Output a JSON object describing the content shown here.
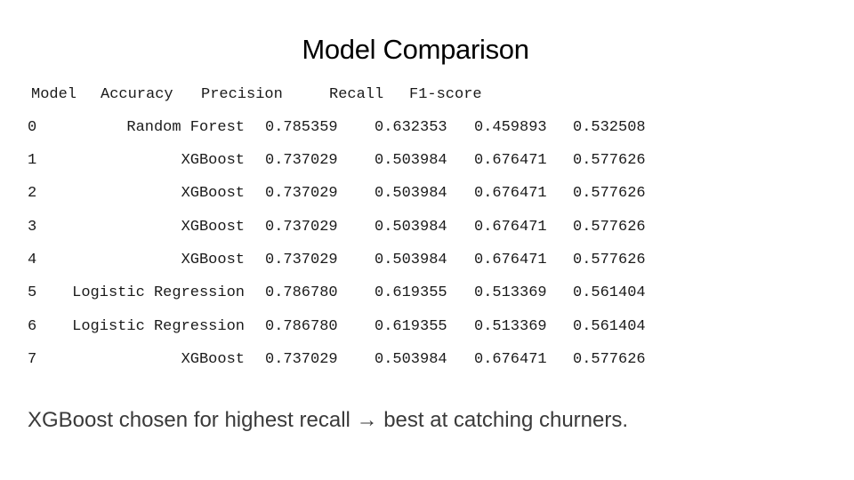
{
  "title": "Model Comparison",
  "table": {
    "headers": [
      "Model",
      "Accuracy",
      "Precision",
      "Recall",
      "F1-score"
    ],
    "rows": [
      [
        "0",
        "Random Forest",
        "0.785359",
        "0.632353",
        "0.459893",
        "0.532508"
      ],
      [
        "1",
        "XGBoost",
        "0.737029",
        "0.503984",
        "0.676471",
        "0.577626"
      ],
      [
        "2",
        "XGBoost",
        "0.737029",
        "0.503984",
        "0.676471",
        "0.577626"
      ],
      [
        "3",
        "XGBoost",
        "0.737029",
        "0.503984",
        "0.676471",
        "0.577626"
      ],
      [
        "4",
        "XGBoost",
        "0.737029",
        "0.503984",
        "0.676471",
        "0.577626"
      ],
      [
        "5",
        "Logistic Regression",
        "0.786780",
        "0.619355",
        "0.513369",
        "0.561404"
      ],
      [
        "6",
        "Logistic Regression",
        "0.786780",
        "0.619355",
        "0.513369",
        "0.561404"
      ],
      [
        "7",
        "XGBoost",
        "0.737029",
        "0.503984",
        "0.676471",
        "0.577626"
      ]
    ]
  },
  "footnote": "XGBoost chosen for highest recall → best at catching churners."
}
